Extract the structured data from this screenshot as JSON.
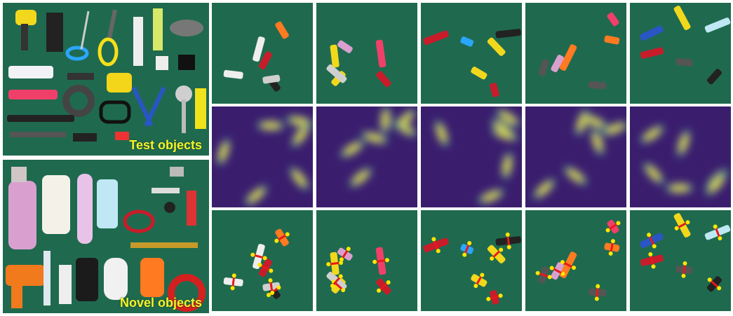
{
  "left": {
    "test_caption": "Test objects",
    "novel_caption": "Novel objects"
  },
  "colors": {
    "table_green": "#1f6a4f",
    "heatmap_bg": "#3b1d6e",
    "heatmap_hot": "#f5e61f",
    "grasp_line": "#e41a1c",
    "grasp_point": "#ffe600"
  }
}
